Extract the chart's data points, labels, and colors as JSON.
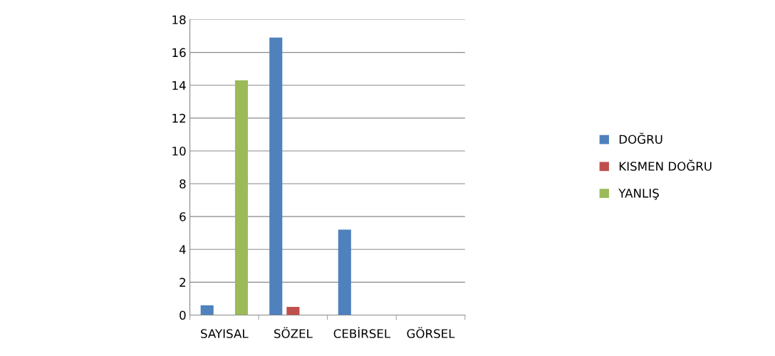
{
  "chart_data": {
    "type": "bar",
    "categories": [
      "SAYISAL",
      "SÖZEL",
      "CEBİRSEL",
      "GÖRSEL"
    ],
    "series": [
      {
        "name": "DOĞRU",
        "color": "#4f81bd",
        "values": [
          0.6,
          16.9,
          5.2,
          0
        ]
      },
      {
        "name": "KISMEN DOĞRU",
        "color": "#c0504d",
        "values": [
          0,
          0.5,
          0,
          0
        ]
      },
      {
        "name": "YANLIŞ",
        "color": "#9bbb59",
        "values": [
          14.3,
          0,
          0,
          0
        ]
      }
    ],
    "ylim": [
      0,
      18
    ],
    "yticks": [
      0,
      2,
      4,
      6,
      8,
      10,
      12,
      14,
      16,
      18
    ],
    "grid": "y",
    "legend": "right"
  }
}
